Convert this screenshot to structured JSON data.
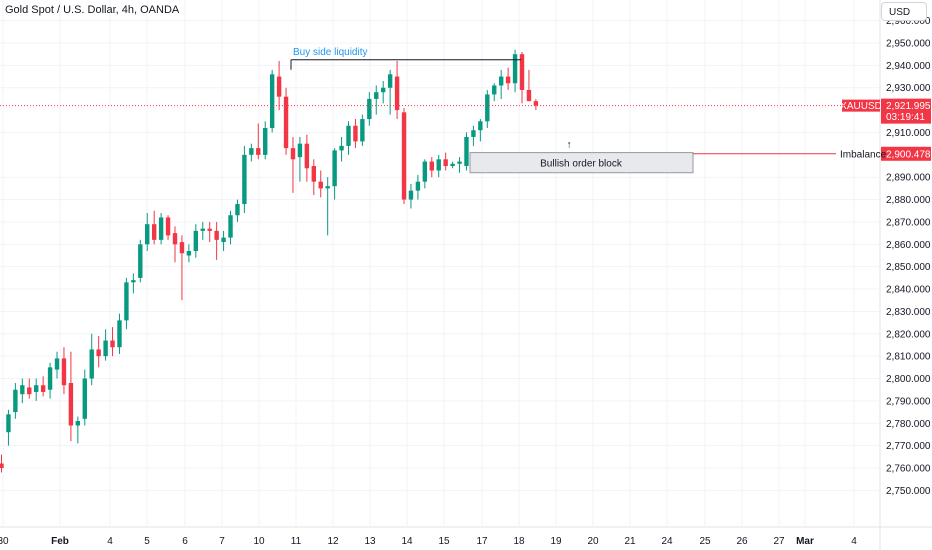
{
  "header": {
    "title": "Gold Spot / U.S. Dollar, 4h, OANDA",
    "currency_button": "USD"
  },
  "colors": {
    "up": "#089981",
    "down": "#f23645",
    "accent_blue": "#2196f3",
    "price_line": "#f23645",
    "grid": "#f0f3fa",
    "zone_fill": "#e6e7ea",
    "zone_border": "#9598a1"
  },
  "labels": {
    "symbol_tag": "XAUUSD",
    "current_price": "2,921.995",
    "countdown": "03:19:41",
    "imbalance_label": "Imbalance",
    "imbalance_price": "2,900.478",
    "buy_side_liquidity": "Buy side liquidity",
    "order_block": "Bullish order block",
    "arrow": "↑"
  },
  "chart_data": {
    "type": "candlestick",
    "title": "Gold Spot / U.S. Dollar, 4h, OANDA",
    "currency": "USD",
    "y_ticks": [
      "2,960.000",
      "2,950.000",
      "2,940.000",
      "2,930.000",
      "2,910.000",
      "2,890.000",
      "2,880.000",
      "2,870.000",
      "2,860.000",
      "2,850.000",
      "2,840.000",
      "2,830.000",
      "2,820.000",
      "2,810.000",
      "2,800.000",
      "2,790.000",
      "2,780.000",
      "2,770.000",
      "2,760.000",
      "2,750.000"
    ],
    "x_ticks": [
      {
        "label": "30",
        "bold": false
      },
      {
        "label": "Feb",
        "bold": true
      },
      {
        "label": "4",
        "bold": false
      },
      {
        "label": "5",
        "bold": false
      },
      {
        "label": "6",
        "bold": false
      },
      {
        "label": "7",
        "bold": false
      },
      {
        "label": "10",
        "bold": false
      },
      {
        "label": "11",
        "bold": false
      },
      {
        "label": "12",
        "bold": false
      },
      {
        "label": "13",
        "bold": false
      },
      {
        "label": "14",
        "bold": false
      },
      {
        "label": "15",
        "bold": false
      },
      {
        "label": "17",
        "bold": false
      },
      {
        "label": "18",
        "bold": false
      },
      {
        "label": "19",
        "bold": false
      },
      {
        "label": "20",
        "bold": false
      },
      {
        "label": "21",
        "bold": false
      },
      {
        "label": "24",
        "bold": false
      },
      {
        "label": "25",
        "bold": false
      },
      {
        "label": "26",
        "bold": false
      },
      {
        "label": "27",
        "bold": false
      },
      {
        "label": "Mar",
        "bold": true
      },
      {
        "label": "4",
        "bold": false
      }
    ],
    "ylim": [
      2745,
      2967
    ],
    "current_price": 2921.995,
    "imbalance_price": 2900.478,
    "buy_side_liquidity_level": 2942.5,
    "order_block": {
      "top": 2901,
      "bottom": 2892
    },
    "candles": [
      {
        "o": 2762,
        "h": 2766,
        "l": 2758,
        "c": 2760
      },
      {
        "o": 2776,
        "h": 2786,
        "l": 2770,
        "c": 2784
      },
      {
        "o": 2785,
        "h": 2798,
        "l": 2782,
        "c": 2795
      },
      {
        "o": 2793,
        "h": 2800,
        "l": 2789,
        "c": 2797
      },
      {
        "o": 2796,
        "h": 2800,
        "l": 2791,
        "c": 2793
      },
      {
        "o": 2794,
        "h": 2800,
        "l": 2790,
        "c": 2797
      },
      {
        "o": 2797,
        "h": 2801,
        "l": 2792,
        "c": 2794
      },
      {
        "o": 2795,
        "h": 2807,
        "l": 2791,
        "c": 2805
      },
      {
        "o": 2804,
        "h": 2812,
        "l": 2800,
        "c": 2809
      },
      {
        "o": 2809,
        "h": 2814,
        "l": 2793,
        "c": 2797
      },
      {
        "o": 2798,
        "h": 2812,
        "l": 2772,
        "c": 2779
      },
      {
        "o": 2779,
        "h": 2783,
        "l": 2771,
        "c": 2781
      },
      {
        "o": 2782,
        "h": 2804,
        "l": 2779,
        "c": 2800
      },
      {
        "o": 2800,
        "h": 2820,
        "l": 2797,
        "c": 2813
      },
      {
        "o": 2813,
        "h": 2819,
        "l": 2805,
        "c": 2810
      },
      {
        "o": 2810,
        "h": 2822,
        "l": 2808,
        "c": 2817
      },
      {
        "o": 2817,
        "h": 2823,
        "l": 2810,
        "c": 2814
      },
      {
        "o": 2814,
        "h": 2829,
        "l": 2811,
        "c": 2826
      },
      {
        "o": 2826,
        "h": 2845,
        "l": 2822,
        "c": 2843
      },
      {
        "o": 2843,
        "h": 2847,
        "l": 2838,
        "c": 2844
      },
      {
        "o": 2845,
        "h": 2862,
        "l": 2843,
        "c": 2860
      },
      {
        "o": 2860,
        "h": 2874,
        "l": 2857,
        "c": 2869
      },
      {
        "o": 2869,
        "h": 2875,
        "l": 2860,
        "c": 2862
      },
      {
        "o": 2862,
        "h": 2874,
        "l": 2860,
        "c": 2872
      },
      {
        "o": 2872,
        "h": 2873,
        "l": 2862,
        "c": 2864
      },
      {
        "o": 2865,
        "h": 2868,
        "l": 2852,
        "c": 2860
      },
      {
        "o": 2861,
        "h": 2864,
        "l": 2835,
        "c": 2856
      },
      {
        "o": 2855,
        "h": 2860,
        "l": 2852,
        "c": 2857
      },
      {
        "o": 2857,
        "h": 2869,
        "l": 2854,
        "c": 2866
      },
      {
        "o": 2866,
        "h": 2870,
        "l": 2862,
        "c": 2867
      },
      {
        "o": 2867,
        "h": 2870,
        "l": 2861,
        "c": 2866
      },
      {
        "o": 2866,
        "h": 2870,
        "l": 2853,
        "c": 2862
      },
      {
        "o": 2861,
        "h": 2866,
        "l": 2857,
        "c": 2863
      },
      {
        "o": 2863,
        "h": 2875,
        "l": 2860,
        "c": 2873
      },
      {
        "o": 2873,
        "h": 2880,
        "l": 2870,
        "c": 2878
      },
      {
        "o": 2878,
        "h": 2904,
        "l": 2874,
        "c": 2900
      },
      {
        "o": 2900,
        "h": 2905,
        "l": 2897,
        "c": 2903
      },
      {
        "o": 2903,
        "h": 2914,
        "l": 2898,
        "c": 2900
      },
      {
        "o": 2900,
        "h": 2915,
        "l": 2898,
        "c": 2912
      },
      {
        "o": 2912,
        "h": 2938,
        "l": 2910,
        "c": 2936
      },
      {
        "o": 2935,
        "h": 2942,
        "l": 2920,
        "c": 2926
      },
      {
        "o": 2926,
        "h": 2930,
        "l": 2900,
        "c": 2903
      },
      {
        "o": 2903,
        "h": 2908,
        "l": 2883,
        "c": 2898
      },
      {
        "o": 2899,
        "h": 2908,
        "l": 2888,
        "c": 2905
      },
      {
        "o": 2905,
        "h": 2909,
        "l": 2888,
        "c": 2894
      },
      {
        "o": 2895,
        "h": 2898,
        "l": 2882,
        "c": 2888
      },
      {
        "o": 2888,
        "h": 2893,
        "l": 2881,
        "c": 2885
      },
      {
        "o": 2885,
        "h": 2890,
        "l": 2864,
        "c": 2886
      },
      {
        "o": 2886,
        "h": 2903,
        "l": 2880,
        "c": 2902
      },
      {
        "o": 2902,
        "h": 2908,
        "l": 2897,
        "c": 2904
      },
      {
        "o": 2904,
        "h": 2915,
        "l": 2900,
        "c": 2913
      },
      {
        "o": 2913,
        "h": 2916,
        "l": 2903,
        "c": 2906
      },
      {
        "o": 2906,
        "h": 2918,
        "l": 2904,
        "c": 2916
      },
      {
        "o": 2916,
        "h": 2928,
        "l": 2913,
        "c": 2925
      },
      {
        "o": 2925,
        "h": 2931,
        "l": 2918,
        "c": 2928
      },
      {
        "o": 2928,
        "h": 2933,
        "l": 2923,
        "c": 2930
      },
      {
        "o": 2930,
        "h": 2938,
        "l": 2918,
        "c": 2936
      },
      {
        "o": 2935,
        "h": 2942,
        "l": 2916,
        "c": 2920
      },
      {
        "o": 2919,
        "h": 2921,
        "l": 2878,
        "c": 2880
      },
      {
        "o": 2880,
        "h": 2887,
        "l": 2876,
        "c": 2884
      },
      {
        "o": 2884,
        "h": 2891,
        "l": 2880,
        "c": 2888
      },
      {
        "o": 2888,
        "h": 2898,
        "l": 2885,
        "c": 2897
      },
      {
        "o": 2897,
        "h": 2899,
        "l": 2890,
        "c": 2893
      },
      {
        "o": 2893,
        "h": 2900,
        "l": 2890,
        "c": 2898
      },
      {
        "o": 2898,
        "h": 2901,
        "l": 2893,
        "c": 2895
      },
      {
        "o": 2895,
        "h": 2897,
        "l": 2894,
        "c": 2896
      },
      {
        "o": 2896,
        "h": 2899,
        "l": 2892,
        "c": 2897
      },
      {
        "o": 2895,
        "h": 2910,
        "l": 2893,
        "c": 2908
      },
      {
        "o": 2908,
        "h": 2913,
        "l": 2904,
        "c": 2911
      },
      {
        "o": 2911,
        "h": 2916,
        "l": 2906,
        "c": 2915
      },
      {
        "o": 2915,
        "h": 2929,
        "l": 2912,
        "c": 2927
      },
      {
        "o": 2927,
        "h": 2932,
        "l": 2924,
        "c": 2931
      },
      {
        "o": 2931,
        "h": 2938,
        "l": 2925,
        "c": 2935
      },
      {
        "o": 2935,
        "h": 2939,
        "l": 2929,
        "c": 2932
      },
      {
        "o": 2932,
        "h": 2947,
        "l": 2928,
        "c": 2945
      },
      {
        "o": 2945,
        "h": 2946,
        "l": 2923,
        "c": 2929
      },
      {
        "o": 2929,
        "h": 2938,
        "l": 2924,
        "c": 2924
      },
      {
        "o": 2924,
        "h": 2925,
        "l": 2920,
        "c": 2922
      }
    ],
    "annotations": [
      "Buy side liquidity",
      "Bullish order block",
      "Imbalance"
    ]
  }
}
